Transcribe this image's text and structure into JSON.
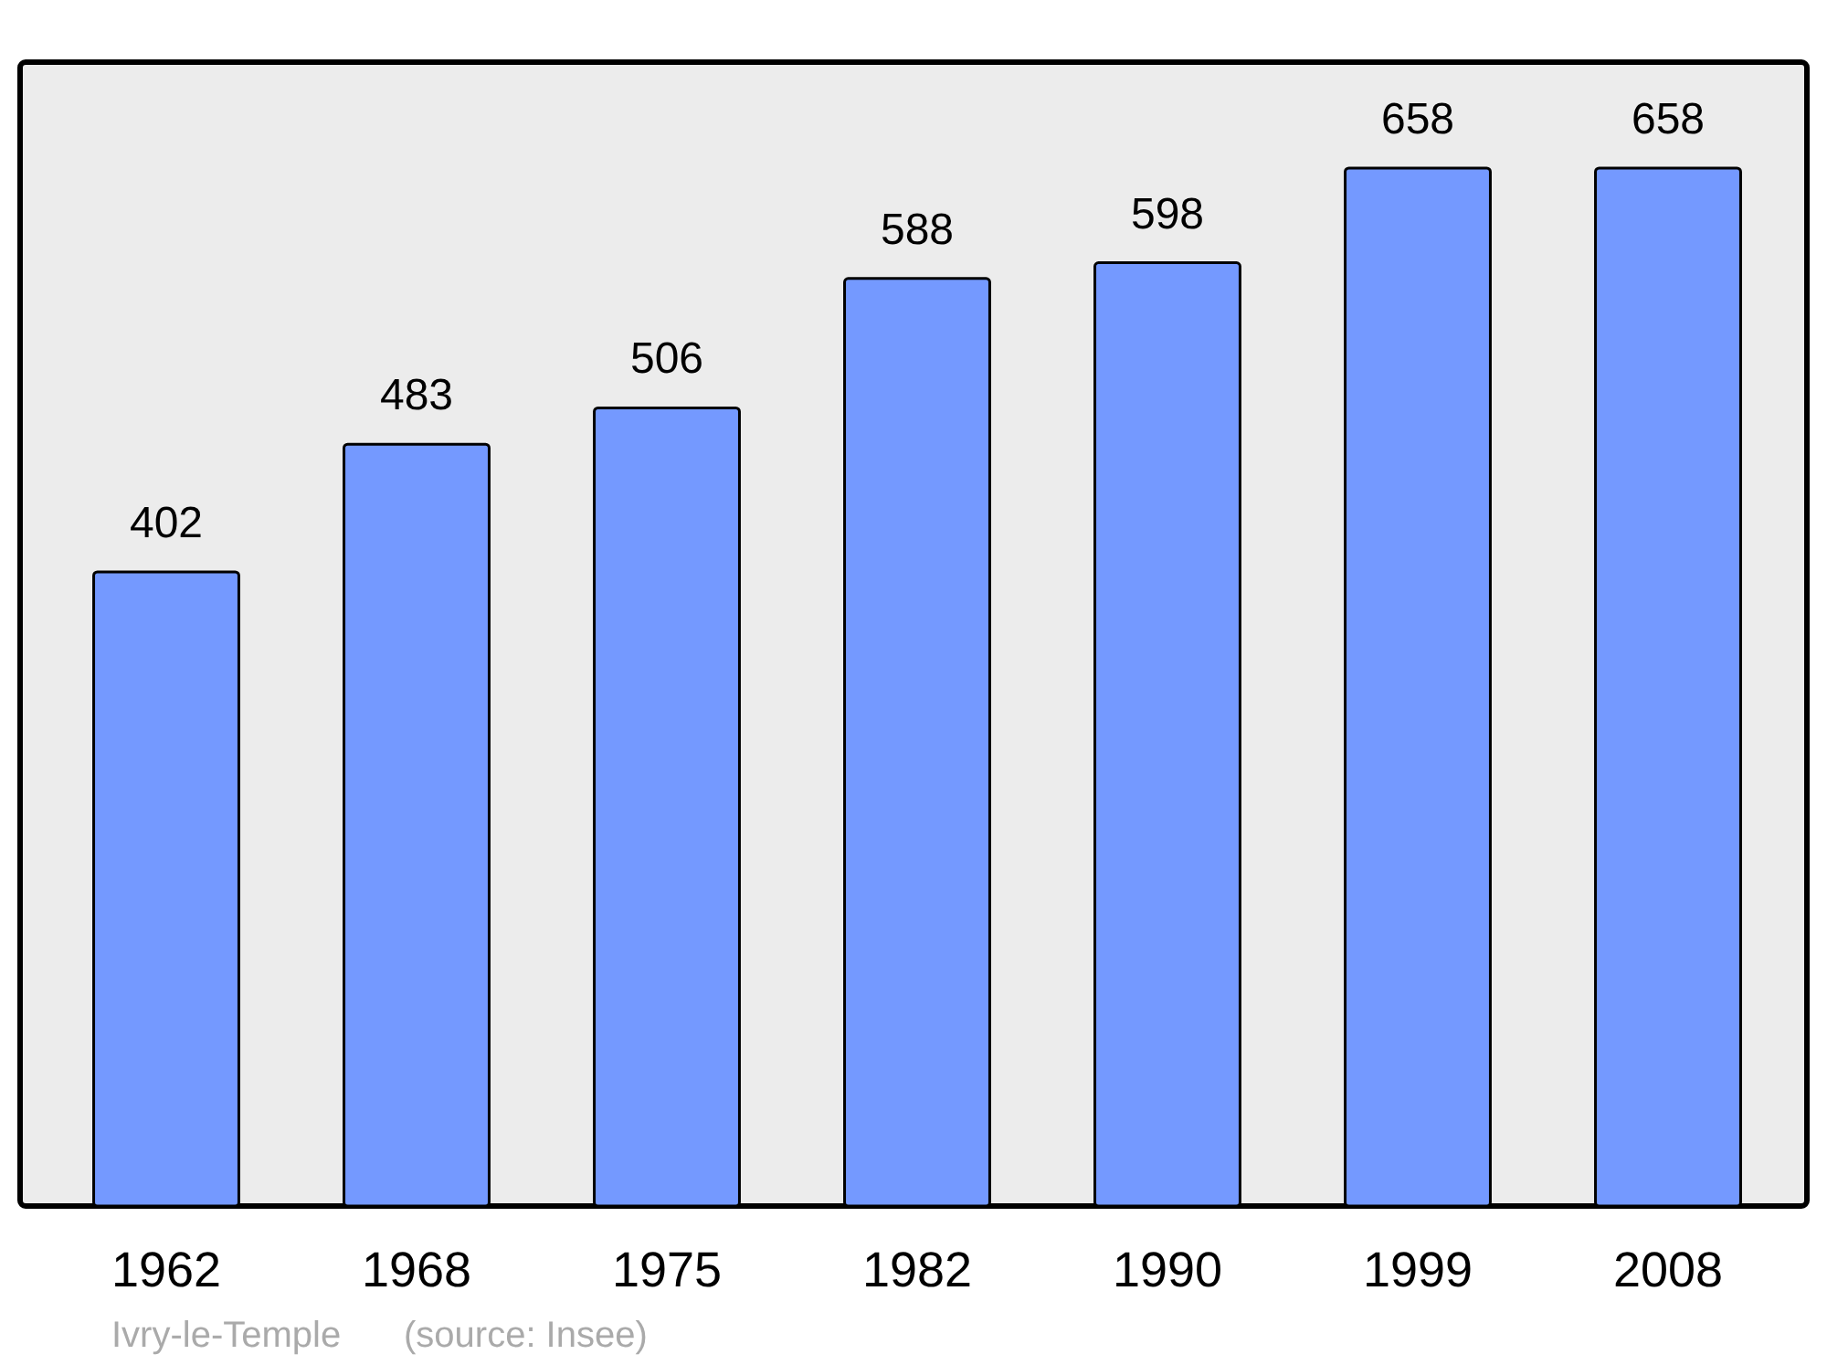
{
  "chart_data": {
    "type": "bar",
    "categories": [
      "1962",
      "1968",
      "1975",
      "1982",
      "1990",
      "1999",
      "2008"
    ],
    "values": [
      402,
      483,
      506,
      588,
      598,
      658,
      658
    ],
    "color": "#7499ff",
    "data_labels": true,
    "annotations": [
      "Ivry-le-Temple",
      "(source: Insee)"
    ]
  }
}
